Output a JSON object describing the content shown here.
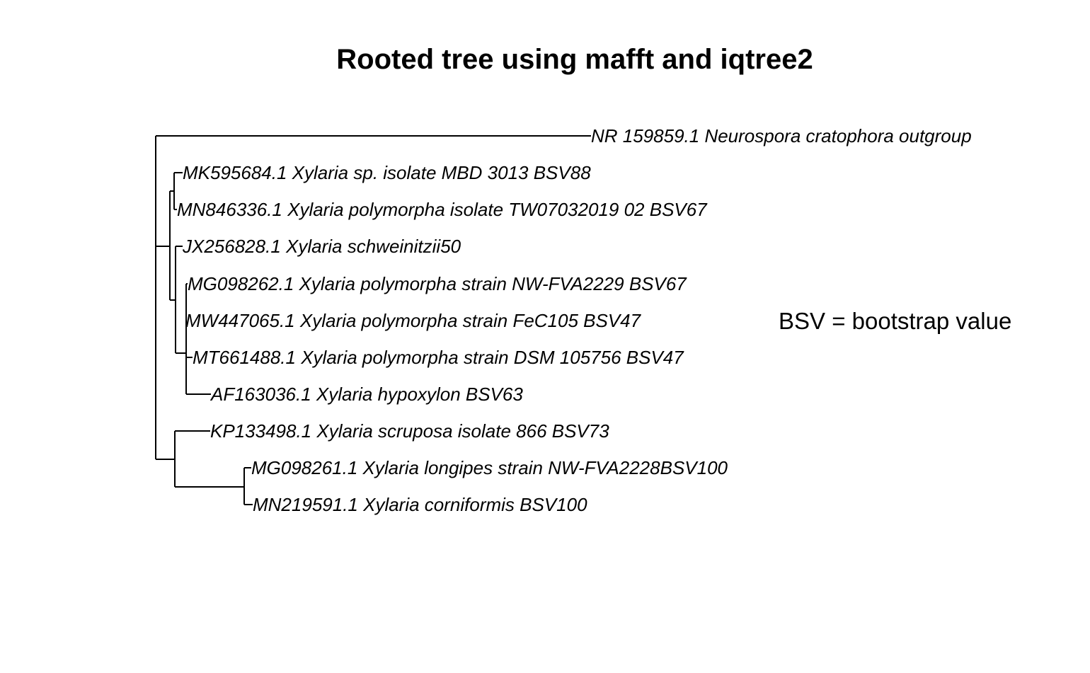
{
  "title": "Rooted tree using mafft and iqtree2",
  "note": "BSV = bootstrap value",
  "tree": {
    "rooted": true,
    "tips": [
      "NR 159859.1 Neurospora cratophora outgroup",
      "MK595684.1 Xylaria sp. isolate MBD 3013 BSV88",
      "MN846336.1 Xylaria polymorpha isolate TW07032019 02 BSV67",
      "JX256828.1 Xylaria schweinitzii50",
      "MG098262.1 Xylaria polymorpha strain NW-FVA2229 BSV67",
      "MW447065.1 Xylaria polymorpha strain FeC105 BSV47",
      "MT661488.1 Xylaria polymorpha strain DSM 105756 BSV47",
      "AF163036.1 Xylaria hypoxylon BSV63",
      "KP133498.1 Xylaria scruposa isolate 866 BSV73",
      "MG098261.1 Xylaria longipes strain NW-FVA2228BSV100",
      "MN219591.1 Xylaria corniformis BSV100"
    ]
  }
}
